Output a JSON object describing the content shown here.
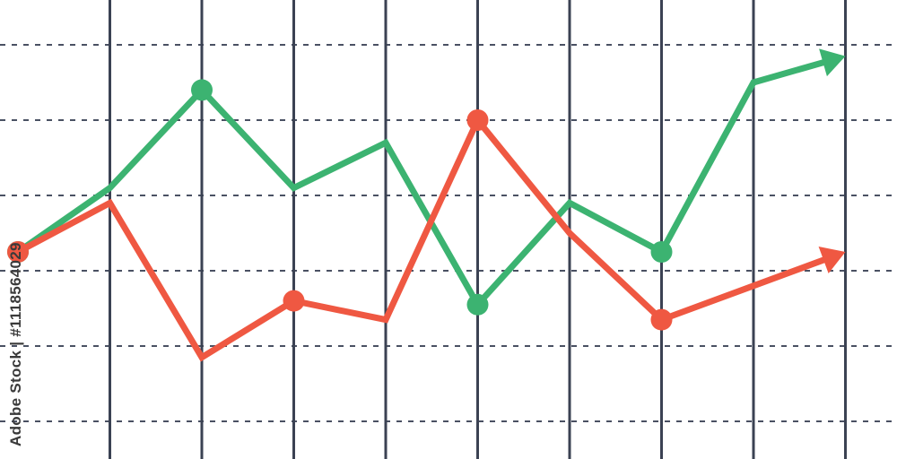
{
  "watermark": "Adobe Stock | #1118564029",
  "colors": {
    "background": "#ffffff",
    "grid_vertical": "#3b4253",
    "grid_horizontal": "#4a5163"
  },
  "chart_data": {
    "type": "line",
    "title": "",
    "xlabel": "",
    "ylabel": "",
    "x": [
      0,
      1,
      2,
      3,
      4,
      5,
      6,
      7,
      8,
      9
    ],
    "xlim": [
      0,
      9.2
    ],
    "ylim": [
      0,
      6
    ],
    "vertical_gridlines": [
      1,
      2,
      3,
      4,
      5,
      6,
      7,
      8,
      9
    ],
    "horizontal_gridlines": [
      0.5,
      1.5,
      2.5,
      3.5,
      4.5,
      5.5
    ],
    "grid": true,
    "legend": false,
    "end_arrows": true,
    "series": [
      {
        "color": "#3cb371",
        "values": [
          2.75,
          3.6,
          4.9,
          3.6,
          4.2,
          2.05,
          3.4,
          2.75,
          5.0,
          5.35
        ],
        "markers": [
          0,
          2,
          5,
          7
        ]
      },
      {
        "color": "#ef5842",
        "values": [
          2.75,
          3.4,
          1.35,
          2.1,
          1.85,
          4.5,
          3.0,
          1.85,
          2.3,
          2.75
        ],
        "markers": [
          0,
          3,
          5,
          7
        ]
      }
    ]
  }
}
